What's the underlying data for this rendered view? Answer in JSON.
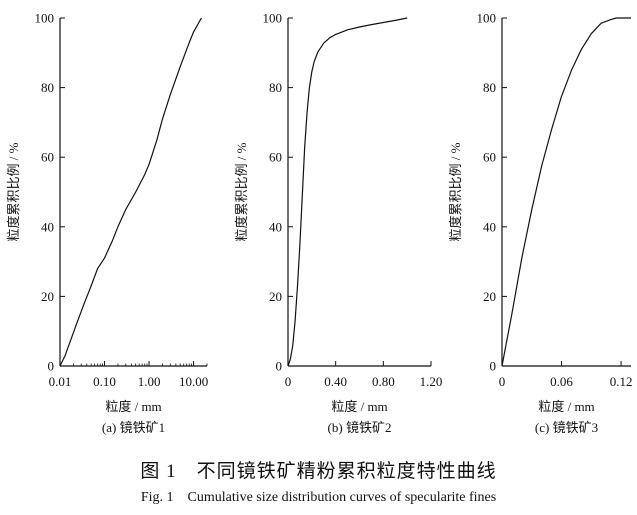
{
  "caption": {
    "zh": "图 1　不同镜铁矿精粉累积粒度特性曲线",
    "en": "Fig. 1　Cumulative size distribution curves of specularite fines"
  },
  "chart_data": [
    {
      "type": "line",
      "panel_label": "(a) 镜铁矿1",
      "xlabel": "粒度 / mm",
      "ylabel": "粒度累积比例 / %",
      "xscale": "log",
      "xlim": [
        0.01,
        20
      ],
      "ylim": [
        0,
        100
      ],
      "xticks": [
        0.01,
        0.1,
        1,
        10
      ],
      "xtick_labels": [
        "0.01",
        "0.10",
        "1.00",
        "10.00"
      ],
      "yticks": [
        0,
        20,
        40,
        60,
        80,
        100
      ],
      "ytick_labels": [
        "0",
        "20",
        "40",
        "60",
        "80",
        "100"
      ],
      "series": [
        {
          "x": [
            0.01,
            0.013,
            0.018,
            0.025,
            0.035,
            0.05,
            0.07,
            0.1,
            0.15,
            0.2,
            0.3,
            0.5,
            0.8,
            1.0,
            1.5,
            2.0,
            3.0,
            5.0,
            8.0,
            10.0,
            15.0
          ],
          "y": [
            0,
            3,
            8,
            13,
            18,
            23,
            28,
            31,
            36,
            40,
            45,
            50,
            55,
            58,
            65,
            71,
            78,
            86,
            93,
            96,
            100
          ]
        }
      ]
    },
    {
      "type": "line",
      "panel_label": "(b) 镜铁矿2",
      "xlabel": "粒度 / mm",
      "ylabel": "粒度累积比例 / %",
      "xscale": "linear",
      "xlim": [
        0,
        1.2
      ],
      "ylim": [
        0,
        100
      ],
      "xticks": [
        0,
        0.4,
        0.8,
        1.2
      ],
      "xtick_labels": [
        "0",
        "0.40",
        "0.80",
        "1.20"
      ],
      "yticks": [
        0,
        20,
        40,
        60,
        80,
        100
      ],
      "ytick_labels": [
        "0",
        "20",
        "40",
        "60",
        "80",
        "100"
      ],
      "series": [
        {
          "x": [
            0.0,
            0.02,
            0.04,
            0.06,
            0.08,
            0.1,
            0.12,
            0.14,
            0.16,
            0.18,
            0.2,
            0.22,
            0.25,
            0.3,
            0.35,
            0.4,
            0.5,
            0.6,
            0.7,
            0.8,
            0.9,
            1.0
          ],
          "y": [
            0,
            2,
            6,
            13,
            23,
            35,
            49,
            63,
            73,
            80,
            84.5,
            87.5,
            90.2,
            92.8,
            94.3,
            95.3,
            96.6,
            97.4,
            98.1,
            98.7,
            99.3,
            100
          ]
        }
      ]
    },
    {
      "type": "line",
      "panel_label": "(c) 镜铁矿3",
      "xlabel": "粒度 / mm",
      "ylabel": "粒度累积比例 / %",
      "xscale": "linear",
      "xlim": [
        0,
        0.13
      ],
      "ylim": [
        0,
        100
      ],
      "xticks": [
        0,
        0.06,
        0.12
      ],
      "xtick_labels": [
        "0",
        "0.06",
        "0.12"
      ],
      "yticks": [
        0,
        20,
        40,
        60,
        80,
        100
      ],
      "ytick_labels": [
        "0",
        "20",
        "40",
        "60",
        "80",
        "100"
      ],
      "series": [
        {
          "x": [
            0.0,
            0.01,
            0.02,
            0.03,
            0.04,
            0.05,
            0.06,
            0.07,
            0.08,
            0.09,
            0.1,
            0.11,
            0.115,
            0.12,
            0.13
          ],
          "y": [
            0,
            15,
            31,
            45,
            57.5,
            68,
            77.5,
            85,
            91,
            95.5,
            98.5,
            99.6,
            100,
            100,
            100
          ]
        }
      ]
    }
  ]
}
